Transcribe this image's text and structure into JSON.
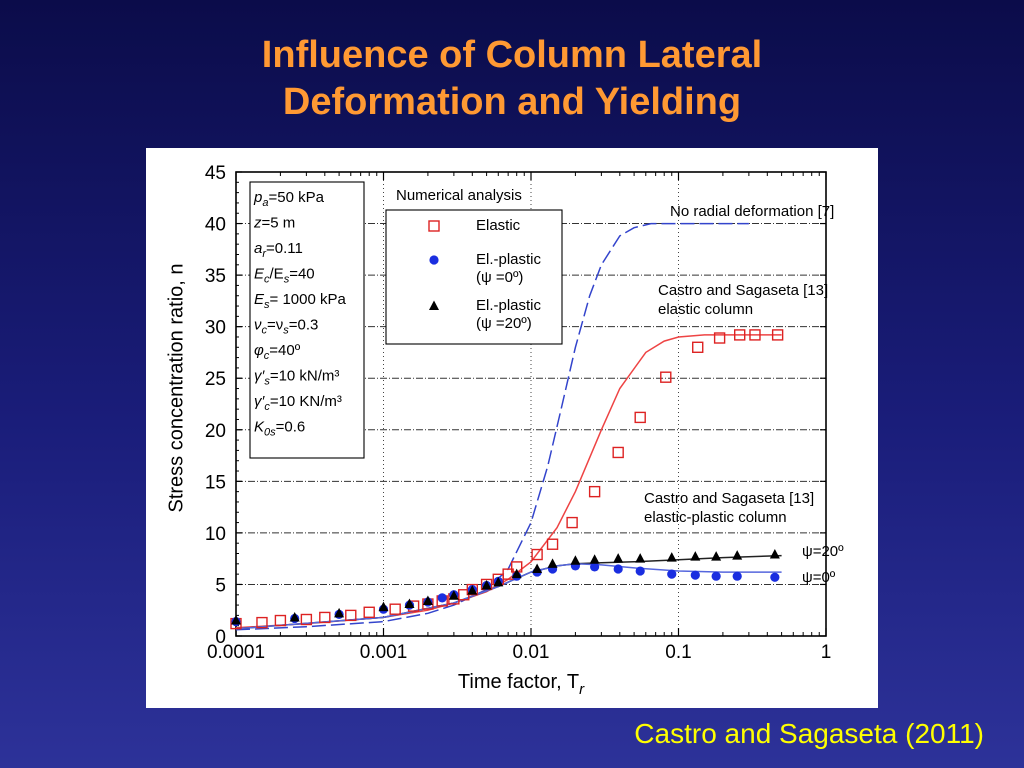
{
  "slide": {
    "title_line1": "Influence of Column Lateral",
    "title_line2": "Deformation and Yielding",
    "citation": "Castro and Sagaseta (2011)"
  },
  "chart_data": {
    "type": "scatter",
    "xscale": "log",
    "xlim": [
      0.0001,
      1
    ],
    "ylim": [
      0,
      45
    ],
    "xlabel": "Time factor, T",
    "xlabel_sub": "r",
    "ylabel": "Stress concentration ratio, n",
    "x_ticks": [
      {
        "v": 0.0001,
        "label": "0.0001"
      },
      {
        "v": 0.001,
        "label": "0.001"
      },
      {
        "v": 0.01,
        "label": "0.01"
      },
      {
        "v": 0.1,
        "label": "0.1"
      },
      {
        "v": 1,
        "label": "1"
      }
    ],
    "y_ticks": [
      0,
      5,
      10,
      15,
      20,
      25,
      30,
      35,
      40,
      45
    ],
    "params_box": [
      {
        "sym": "p",
        "sub": "a",
        "rest": "=50 kPa"
      },
      {
        "sym": "z",
        "sub": "",
        "rest": "=5 m"
      },
      {
        "sym": "a",
        "sub": "r",
        "rest": "=0.11"
      },
      {
        "sym": "E",
        "sub": "c",
        "rest": "/E",
        "sub2": "s",
        "rest2": "=40"
      },
      {
        "sym": "E",
        "sub": "s",
        "rest": "= 1000 kPa"
      },
      {
        "sym": "ν",
        "sub": "c",
        "rest": "=ν",
        "sub2": "s",
        "rest2": "=0.3"
      },
      {
        "sym": "φ",
        "sub": "c",
        "rest": "=40º"
      },
      {
        "sym": "γ′",
        "sub": "s",
        "rest": "=10 kN/m³"
      },
      {
        "sym": "γ′",
        "sub": "c",
        "rest": "=10 KN/m³"
      },
      {
        "sym": "K",
        "sub": "0s",
        "rest": "=0.6"
      }
    ],
    "legend_title": "Numerical analysis",
    "legend": [
      {
        "name": "Elastic",
        "marker": "open-square",
        "color": "#dd2222"
      },
      {
        "name": "El.-plastic",
        "name_line2": "(ψ =0º)",
        "marker": "filled-circle",
        "color": "#1a2ee0"
      },
      {
        "name": "El.-plastic",
        "name_line2": "(ψ =20º)",
        "marker": "filled-triangle",
        "color": "#000000"
      }
    ],
    "annotations": [
      {
        "text": "No radial deformation [7]"
      },
      {
        "text": "Castro and Sagaseta [13]",
        "text2": "elastic column"
      },
      {
        "text": "Castro and Sagaseta [13]",
        "text2": "elastic-plastic column"
      },
      {
        "text": "ψ=20º"
      },
      {
        "text": "ψ=0º"
      }
    ],
    "series": [
      {
        "name": "Elastic",
        "marker": "open-square",
        "color": "#dd2222",
        "x": [
          0.0001,
          0.00015,
          0.0002,
          0.0003,
          0.0004,
          0.0006,
          0.0008,
          0.0012,
          0.0016,
          0.002,
          0.0025,
          0.003,
          0.0035,
          0.004,
          0.005,
          0.006,
          0.007,
          0.008,
          0.011,
          0.014,
          0.019,
          0.027,
          0.039,
          0.055,
          0.082,
          0.135,
          0.19,
          0.26,
          0.33,
          0.47
        ],
        "y": [
          1.2,
          1.3,
          1.5,
          1.6,
          1.8,
          2.0,
          2.3,
          2.6,
          2.9,
          3.1,
          3.4,
          3.6,
          4.0,
          4.5,
          5.0,
          5.5,
          6.0,
          6.7,
          7.9,
          8.9,
          11.0,
          14.0,
          17.8,
          21.2,
          25.1,
          28.0,
          28.9,
          29.2,
          29.2,
          29.2
        ]
      },
      {
        "name": "El.-plastic (ψ =0º)",
        "marker": "filled-circle",
        "color": "#1a2ee0",
        "x": [
          0.0001,
          0.00025,
          0.0005,
          0.001,
          0.0015,
          0.002,
          0.0025,
          0.003,
          0.004,
          0.005,
          0.006,
          0.008,
          0.011,
          0.014,
          0.02,
          0.027,
          0.039,
          0.055,
          0.09,
          0.13,
          0.18,
          0.25,
          0.45
        ],
        "y": [
          1.4,
          1.7,
          2.1,
          2.6,
          3.0,
          3.3,
          3.7,
          4.0,
          4.5,
          4.9,
          5.3,
          5.8,
          6.2,
          6.5,
          6.8,
          6.7,
          6.5,
          6.3,
          6.0,
          5.9,
          5.8,
          5.8,
          5.7
        ]
      },
      {
        "name": "El.-plastic (ψ =20º)",
        "marker": "filled-triangle",
        "color": "#000000",
        "x": [
          0.0001,
          0.00025,
          0.0005,
          0.001,
          0.0015,
          0.002,
          0.003,
          0.004,
          0.005,
          0.006,
          0.008,
          0.011,
          0.014,
          0.02,
          0.027,
          0.039,
          0.055,
          0.09,
          0.13,
          0.18,
          0.25,
          0.45
        ],
        "y": [
          1.5,
          1.8,
          2.2,
          2.8,
          3.1,
          3.4,
          3.9,
          4.4,
          4.9,
          5.2,
          6.0,
          6.5,
          7.0,
          7.3,
          7.4,
          7.5,
          7.5,
          7.6,
          7.7,
          7.7,
          7.8,
          7.9
        ]
      },
      {
        "name": "No radial deformation [7]",
        "line": "dashed",
        "color": "#3344cc",
        "x": [
          0.0001,
          0.0003,
          0.001,
          0.002,
          0.003,
          0.005,
          0.007,
          0.01,
          0.013,
          0.016,
          0.02,
          0.025,
          0.03,
          0.04,
          0.05,
          0.065,
          0.08,
          0.1,
          0.15,
          0.3
        ],
        "y": [
          0.6,
          0.9,
          1.4,
          2.2,
          3.0,
          4.5,
          6.5,
          11.0,
          16.5,
          22.0,
          28.0,
          33.0,
          36.0,
          38.8,
          39.6,
          40.0,
          40.0,
          40.0,
          40.0,
          40.0
        ]
      },
      {
        "name": "Castro and Sagaseta [13] elastic column",
        "line": "solid",
        "color": "#ee4444",
        "x": [
          0.0001,
          0.0003,
          0.001,
          0.002,
          0.003,
          0.005,
          0.007,
          0.01,
          0.015,
          0.02,
          0.03,
          0.04,
          0.06,
          0.08,
          0.1,
          0.15,
          0.2,
          0.3,
          0.5
        ],
        "y": [
          0.8,
          1.2,
          1.8,
          2.5,
          3.2,
          4.3,
          5.5,
          7.2,
          10.5,
          14.0,
          20.0,
          24.0,
          27.5,
          28.6,
          29.0,
          29.2,
          29.2,
          29.2,
          29.2
        ]
      },
      {
        "name": "Castro and Sagaseta [13] elastic-plastic column ψ=20º",
        "line": "solid",
        "color": "#222222",
        "x": [
          0.0001,
          0.001,
          0.003,
          0.006,
          0.01,
          0.015,
          0.02,
          0.03,
          0.05,
          0.1,
          0.2,
          0.5
        ],
        "y": [
          0.7,
          1.8,
          3.2,
          4.8,
          6.2,
          6.8,
          7.0,
          7.1,
          7.2,
          7.4,
          7.6,
          7.8
        ]
      },
      {
        "name": "Castro and Sagaseta [13] elastic-plastic column ψ=0º",
        "line": "solid",
        "color": "#5566dd",
        "x": [
          0.0001,
          0.001,
          0.003,
          0.006,
          0.01,
          0.015,
          0.02,
          0.03,
          0.05,
          0.1,
          0.2,
          0.5
        ],
        "y": [
          0.7,
          1.8,
          3.2,
          4.8,
          6.2,
          6.8,
          7.0,
          6.9,
          6.6,
          6.3,
          6.2,
          6.2
        ]
      }
    ]
  }
}
